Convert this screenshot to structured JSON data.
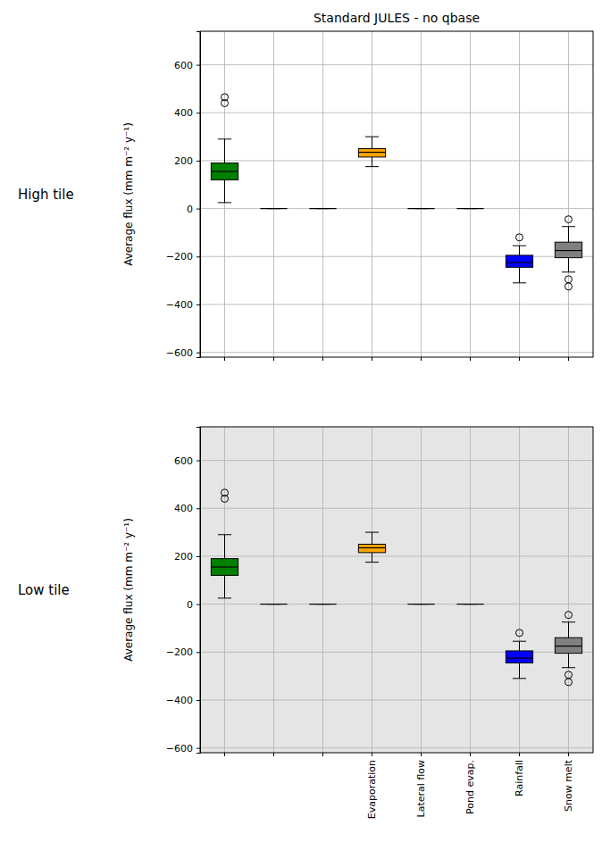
{
  "chart_data": [
    {
      "type": "box",
      "title": "Standard JULES - no qbase",
      "row_label": "High tile",
      "y_label": "Average flux (mm m⁻² y⁻¹)",
      "categories": [
        null,
        null,
        null,
        "Evaporation",
        "Lateral flow",
        "Pond evap.",
        "Rainfall",
        "Snow melt"
      ],
      "boxes": [
        {
          "whisker_low": 25,
          "q1": 120,
          "median": 155,
          "q3": 190,
          "whisker_high": 290,
          "outliers": [
            440,
            465
          ]
        },
        {
          "whisker_low": 0,
          "q1": 0,
          "median": 0,
          "q3": 0,
          "whisker_high": 0,
          "outliers": []
        },
        {
          "whisker_low": 0,
          "q1": 0,
          "median": 0,
          "q3": 0,
          "whisker_high": 0,
          "outliers": []
        },
        {
          "whisker_low": 175,
          "q1": 215,
          "median": 235,
          "q3": 250,
          "whisker_high": 300,
          "outliers": []
        },
        {
          "whisker_low": 0,
          "q1": 0,
          "median": 0,
          "q3": 0,
          "whisker_high": 0,
          "outliers": []
        },
        {
          "whisker_low": 0,
          "q1": 0,
          "median": 0,
          "q3": 0,
          "whisker_high": 0,
          "outliers": []
        },
        {
          "whisker_low": -310,
          "q1": -245,
          "median": -225,
          "q3": -195,
          "whisker_high": -155,
          "outliers": [
            -120
          ]
        },
        {
          "whisker_low": -265,
          "q1": -205,
          "median": -175,
          "q3": -140,
          "whisker_high": -75,
          "outliers": [
            -45,
            -295,
            -325
          ]
        }
      ],
      "colors": [
        "#008000",
        "#000000",
        "#000000",
        "#ffa500",
        "#000000",
        "#000000",
        "#0000ff",
        "#808080"
      ],
      "ylim": [
        -620,
        740
      ],
      "yticks": [
        {
          "value": -600,
          "label": "−600"
        },
        {
          "value": -400,
          "label": "−400"
        },
        {
          "value": -200,
          "label": "−200"
        },
        0,
        200,
        400,
        600
      ],
      "grid": true,
      "tick_labels": "y"
    },
    {
      "type": "box",
      "row_label": "Low tile",
      "y_label": "Average flux (mm m⁻² y⁻¹)",
      "categories": [
        null,
        null,
        null,
        "Evaporation",
        "Lateral flow",
        "Pond evap.",
        "Rainfall",
        "Snow melt"
      ],
      "boxes": [
        {
          "whisker_low": 25,
          "q1": 120,
          "median": 155,
          "q3": 190,
          "whisker_high": 290,
          "outliers": [
            440,
            465
          ]
        },
        {
          "whisker_low": 0,
          "q1": 0,
          "median": 0,
          "q3": 0,
          "whisker_high": 0,
          "outliers": []
        },
        {
          "whisker_low": 0,
          "q1": 0,
          "median": 0,
          "q3": 0,
          "whisker_high": 0,
          "outliers": []
        },
        {
          "whisker_low": 175,
          "q1": 215,
          "median": 235,
          "q3": 250,
          "whisker_high": 300,
          "outliers": []
        },
        {
          "whisker_low": 0,
          "q1": 0,
          "median": 0,
          "q3": 0,
          "whisker_high": 0,
          "outliers": []
        },
        {
          "whisker_low": 0,
          "q1": 0,
          "median": 0,
          "q3": 0,
          "whisker_high": 0,
          "outliers": []
        },
        {
          "whisker_low": -310,
          "q1": -245,
          "median": -225,
          "q3": -195,
          "whisker_high": -155,
          "outliers": [
            -120
          ]
        },
        {
          "whisker_low": -265,
          "q1": -205,
          "median": -175,
          "q3": -140,
          "whisker_high": -75,
          "outliers": [
            -45,
            -295,
            -325
          ]
        }
      ],
      "colors": [
        "#008000",
        "#000000",
        "#000000",
        "#ffa500",
        "#000000",
        "#000000",
        "#0000ff",
        "#808080"
      ],
      "ylim": [
        -620,
        740
      ],
      "yticks": [
        {
          "value": -600,
          "label": "−600"
        },
        {
          "value": -400,
          "label": "−400"
        },
        {
          "value": -200,
          "label": "−200"
        },
        0,
        200,
        400,
        600
      ],
      "grid": true
    }
  ]
}
